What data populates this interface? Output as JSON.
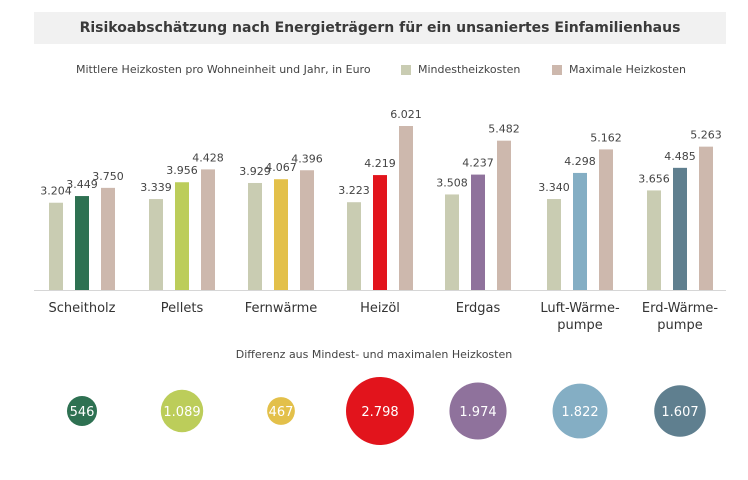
{
  "title": "Risikoabschätzung nach Energieträgern für ein unsaniertes Einfamilienhaus",
  "legend": {
    "subtitle": "Mittlere Heizkosten pro Wohneinheit und Jahr, in Euro",
    "items": [
      {
        "label": "Mindestheizkosten",
        "color": "#c9ccb2"
      },
      {
        "label": "Maximale Heizkosten",
        "color": "#cdb8ad"
      }
    ]
  },
  "diff_caption": "Differenz aus Mindest- und maximalen Heizkosten",
  "chart_data": {
    "type": "bar",
    "title": "Risikoabschätzung nach Energieträgern für ein unsaniertes Einfamilienhaus",
    "subtitle": "Mittlere Heizkosten pro Wohneinheit und Jahr, in Euro",
    "categories": [
      [
        "Scheitholz"
      ],
      [
        "Pellets"
      ],
      [
        "Fernwärme"
      ],
      [
        "Heizöl"
      ],
      [
        "Erdgas"
      ],
      [
        "Luft-Wärme-",
        "pumpe"
      ],
      [
        "Erd-Wärme-",
        "pumpe"
      ]
    ],
    "series": [
      {
        "name": "Mindestheizkosten",
        "color": "#c9ccb2",
        "values": [
          3204,
          3339,
          3929,
          3223,
          3508,
          3340,
          3656
        ],
        "labels": [
          "3.204",
          "3.339",
          "3.929",
          "3.223",
          "3.508",
          "3.340",
          "3.656"
        ]
      },
      {
        "name": "Mittlere Heizkosten",
        "values": [
          3449,
          3956,
          4067,
          4219,
          4237,
          4298,
          4485
        ],
        "labels": [
          "3.449",
          "3.956",
          "4.067",
          "4.219",
          "4.237",
          "4.298",
          "4.485"
        ],
        "colors": [
          "#2e7152",
          "#bccd5a",
          "#e3c04a",
          "#e2141c",
          "#8f729c",
          "#84aec4",
          "#5f7f8f"
        ]
      },
      {
        "name": "Maximale Heizkosten",
        "color": "#cdb8ad",
        "values": [
          3750,
          4428,
          4396,
          6021,
          5482,
          5162,
          5263
        ],
        "labels": [
          "3.750",
          "4.428",
          "4.396",
          "6.021",
          "5.482",
          "5.162",
          "5.263"
        ]
      }
    ],
    "ylim": [
      0,
      6021
    ],
    "grid": false,
    "differences": {
      "values": [
        546,
        1089,
        467,
        2798,
        1974,
        1822,
        1607
      ],
      "labels": [
        "546",
        "1.089",
        "467",
        "2.798",
        "1.974",
        "1.822",
        "1.607"
      ],
      "colors": [
        "#2e7152",
        "#bccd5a",
        "#e3c04a",
        "#e2141c",
        "#8f729c",
        "#84aec4",
        "#5f7f8f"
      ]
    }
  }
}
